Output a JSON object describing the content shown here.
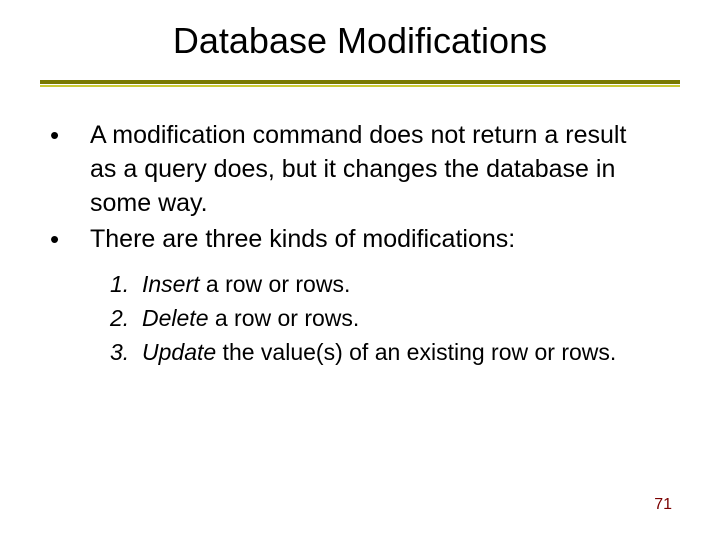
{
  "title": "Database Modifications",
  "bullets": [
    "A modification command does not return a result as a query does, but it changes the database in some way.",
    "There are three kinds of modifications:"
  ],
  "numbered": [
    {
      "n": "1.",
      "verb": "Insert",
      "rest": "  a row or rows."
    },
    {
      "n": "2.",
      "verb": "Delete",
      "rest": "  a row or rows."
    },
    {
      "n": "3.",
      "verb": "Update",
      "rest": "  the value(s) of an existing row or rows."
    }
  ],
  "page_number": "71",
  "colors": {
    "divider_top": "#7a7a00",
    "divider_bottom": "#cccc33",
    "pagenum": "#7a0000"
  }
}
